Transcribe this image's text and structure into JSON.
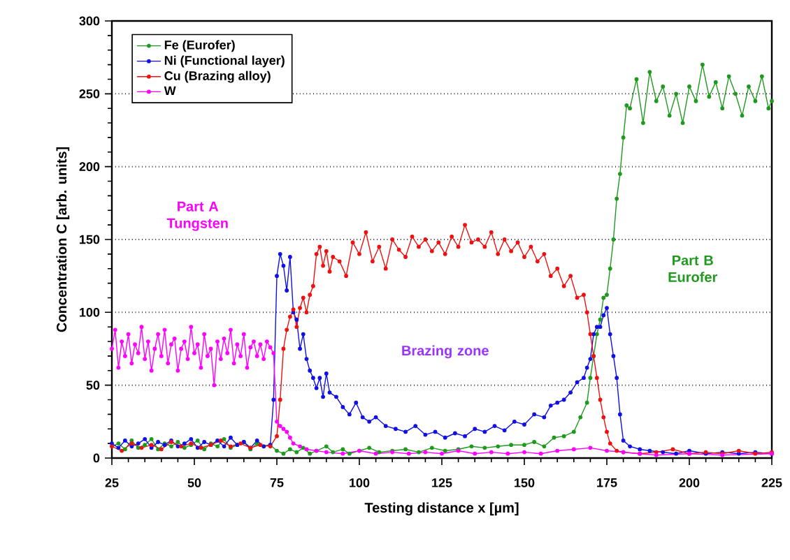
{
  "chart_data": {
    "type": "line",
    "xlabel": "Testing distance x [µm]",
    "ylabel": "Concentration C [arb. units]",
    "xlim": [
      25,
      225
    ],
    "ylim": [
      0,
      300
    ],
    "xticks": [
      25,
      50,
      75,
      100,
      125,
      150,
      175,
      200,
      225
    ],
    "yticks": [
      0,
      50,
      100,
      150,
      200,
      250,
      300
    ],
    "grid": "y",
    "legend": "top left",
    "marker": "circle",
    "line_style": "solid",
    "series": [
      {
        "name": "Fe (Eurofer)",
        "color": "#1e9a1e",
        "x": [
          25,
          27,
          29,
          31,
          33,
          35,
          37,
          39,
          41,
          43,
          45,
          47,
          49,
          51,
          53,
          55,
          57,
          59,
          61,
          63,
          65,
          67,
          69,
          71,
          73,
          75,
          77,
          79,
          81,
          83,
          85,
          87,
          90,
          92,
          95,
          97,
          100,
          103,
          106,
          110,
          114,
          118,
          122,
          126,
          130,
          134,
          138,
          142,
          146,
          150,
          153,
          156,
          159,
          162,
          165,
          167,
          169,
          170,
          171,
          172,
          173,
          174,
          175,
          176,
          177,
          178,
          179,
          180,
          181,
          182,
          184,
          186,
          188,
          190,
          192,
          194,
          196,
          198,
          200,
          202,
          204,
          206,
          208,
          210,
          212,
          214,
          216,
          218,
          220,
          222,
          224,
          225
        ],
        "values": [
          8,
          10,
          6,
          12,
          7,
          9,
          13,
          6,
          10,
          8,
          11,
          7,
          9,
          12,
          6,
          10,
          8,
          13,
          7,
          9,
          11,
          6,
          10,
          8,
          9,
          5,
          3,
          6,
          4,
          7,
          3,
          5,
          8,
          4,
          6,
          3,
          5,
          7,
          4,
          5,
          6,
          4,
          7,
          5,
          6,
          8,
          7,
          8,
          9,
          9,
          11,
          8,
          14,
          15,
          18,
          28,
          38,
          55,
          70,
          85,
          95,
          110,
          112,
          130,
          150,
          178,
          195,
          220,
          242,
          240,
          260,
          230,
          265,
          245,
          255,
          235,
          250,
          230,
          255,
          245,
          270,
          248,
          258,
          240,
          262,
          250,
          235,
          255,
          245,
          262,
          240,
          245
        ]
      },
      {
        "name": "Ni (Functional layer)",
        "color": "#1010e6",
        "x": [
          25,
          27,
          29,
          31,
          33,
          35,
          37,
          39,
          41,
          43,
          45,
          47,
          49,
          51,
          53,
          55,
          57,
          59,
          61,
          63,
          65,
          67,
          69,
          71,
          73,
          74,
          75,
          76,
          77,
          78,
          79,
          80,
          81,
          82,
          83,
          84,
          85,
          86,
          87,
          88,
          89,
          90,
          91,
          93,
          95,
          97,
          99,
          101,
          103,
          105,
          108,
          111,
          114,
          117,
          120,
          123,
          126,
          129,
          132,
          135,
          138,
          141,
          144,
          147,
          150,
          153,
          156,
          158,
          160,
          162,
          164,
          166,
          168,
          169,
          170,
          171,
          172,
          173,
          174,
          175,
          176,
          177,
          178,
          179,
          180,
          182,
          185,
          188,
          192,
          196,
          200,
          205,
          210,
          215,
          220,
          225
        ],
        "values": [
          10,
          7,
          12,
          8,
          10,
          13,
          7,
          11,
          9,
          12,
          8,
          10,
          13,
          7,
          11,
          9,
          12,
          8,
          14,
          9,
          11,
          7,
          12,
          8,
          9,
          40,
          125,
          140,
          132,
          115,
          138,
          100,
          95,
          75,
          85,
          68,
          60,
          55,
          48,
          55,
          42,
          58,
          45,
          42,
          35,
          30,
          38,
          28,
          25,
          28,
          22,
          20,
          18,
          22,
          16,
          18,
          14,
          17,
          15,
          20,
          18,
          22,
          19,
          25,
          23,
          30,
          28,
          36,
          38,
          40,
          45,
          52,
          55,
          62,
          68,
          85,
          90,
          90,
          98,
          103,
          85,
          70,
          55,
          30,
          12,
          8,
          6,
          5,
          4,
          3,
          5,
          3,
          4,
          3,
          4,
          3
        ]
      },
      {
        "name": "Cu (Brazing alloy)",
        "color": "#ee1111",
        "x": [
          25,
          28,
          31,
          34,
          37,
          40,
          43,
          46,
          49,
          52,
          55,
          58,
          61,
          64,
          67,
          70,
          73,
          75,
          76,
          77,
          78,
          79,
          80,
          81,
          82,
          83,
          84,
          85,
          86,
          87,
          88,
          89,
          90,
          91,
          92,
          94,
          96,
          98,
          100,
          102,
          104,
          106,
          108,
          110,
          112,
          114,
          116,
          118,
          120,
          122,
          124,
          126,
          128,
          130,
          132,
          134,
          136,
          138,
          140,
          142,
          144,
          146,
          148,
          150,
          152,
          154,
          156,
          158,
          160,
          162,
          164,
          166,
          168,
          169,
          170,
          171,
          172,
          173,
          174,
          175,
          176,
          178,
          180,
          185,
          190,
          195,
          200,
          205,
          210,
          215,
          220,
          225
        ],
        "values": [
          8,
          5,
          10,
          7,
          9,
          6,
          11,
          8,
          10,
          7,
          9,
          12,
          8,
          10,
          7,
          9,
          8,
          15,
          40,
          75,
          88,
          97,
          102,
          90,
          103,
          110,
          100,
          112,
          118,
          140,
          145,
          132,
          142,
          128,
          138,
          135,
          125,
          148,
          140,
          155,
          135,
          145,
          130,
          150,
          143,
          138,
          152,
          145,
          150,
          142,
          148,
          140,
          152,
          145,
          160,
          148,
          150,
          145,
          155,
          140,
          150,
          142,
          148,
          138,
          145,
          135,
          140,
          125,
          130,
          118,
          125,
          110,
          112,
          100,
          85,
          70,
          55,
          40,
          28,
          18,
          10,
          5,
          4,
          3,
          4,
          6,
          3,
          4,
          3,
          5,
          3,
          4
        ]
      },
      {
        "name": "W",
        "color": "#ff00ff",
        "x": [
          25,
          26,
          27,
          28,
          29,
          30,
          31,
          32,
          33,
          34,
          35,
          36,
          37,
          38,
          39,
          40,
          41,
          42,
          43,
          44,
          45,
          46,
          47,
          48,
          49,
          50,
          51,
          52,
          53,
          54,
          55,
          56,
          57,
          58,
          59,
          60,
          61,
          62,
          63,
          64,
          65,
          66,
          67,
          68,
          69,
          70,
          71,
          72,
          73,
          74,
          75,
          76,
          77,
          78,
          79,
          80,
          82,
          84,
          87,
          90,
          95,
          100,
          105,
          110,
          115,
          120,
          125,
          130,
          135,
          140,
          145,
          150,
          155,
          160,
          165,
          170,
          175,
          180,
          185,
          190,
          200,
          210,
          225
        ],
        "values": [
          75,
          88,
          62,
          80,
          70,
          85,
          65,
          78,
          72,
          90,
          68,
          80,
          60,
          75,
          85,
          70,
          88,
          65,
          78,
          82,
          60,
          75,
          80,
          68,
          90,
          72,
          78,
          62,
          85,
          70,
          75,
          50,
          80,
          68,
          82,
          72,
          88,
          65,
          78,
          70,
          85,
          62,
          76,
          80,
          70,
          78,
          68,
          80,
          76,
          72,
          25,
          22,
          20,
          18,
          14,
          10,
          8,
          6,
          5,
          4,
          3,
          5,
          3,
          4,
          3,
          4,
          3,
          5,
          3,
          4,
          3,
          4,
          3,
          5,
          6,
          7,
          5,
          4,
          3,
          2,
          3,
          2,
          3
        ]
      }
    ],
    "annotations": [
      "Part A Tungsten",
      "Brazing zone",
      "Part B Eurofer"
    ]
  }
}
